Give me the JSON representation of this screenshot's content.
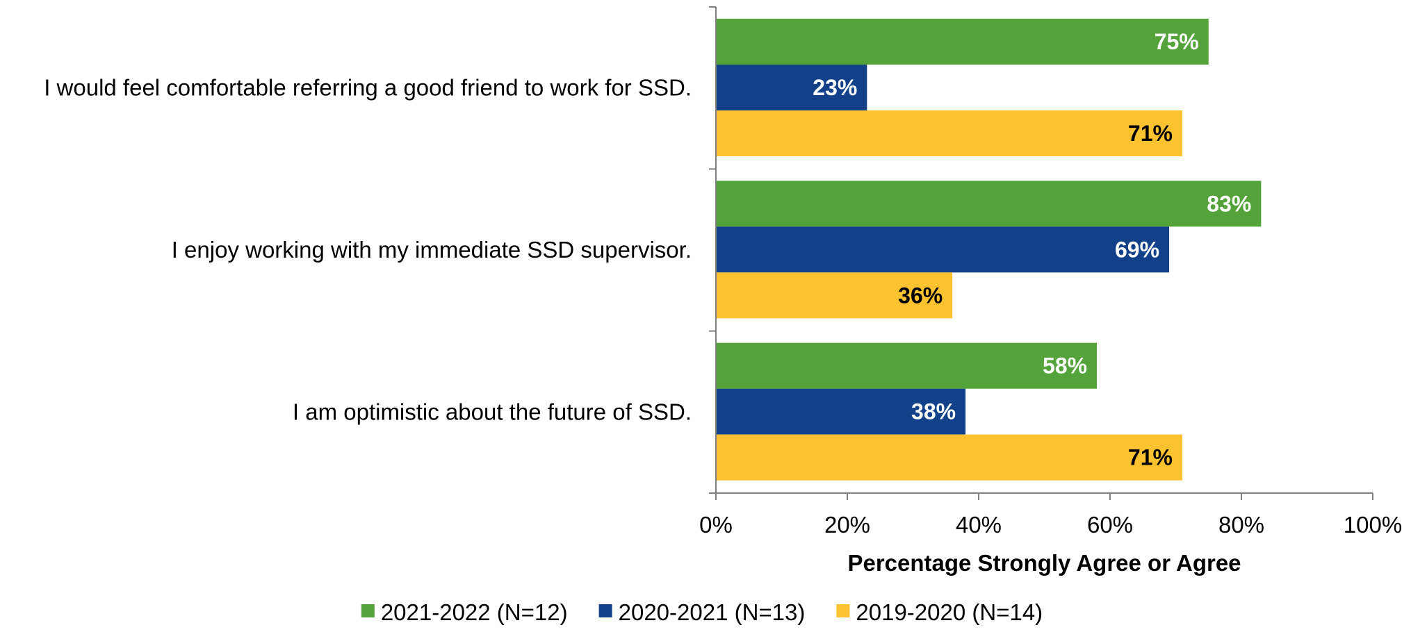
{
  "chart_data": {
    "type": "bar",
    "orientation": "horizontal",
    "categories": [
      "I would feel comfortable referring a good friend to work for SSD.",
      "I enjoy working with my immediate SSD supervisor.",
      "I am optimistic about the future of SSD."
    ],
    "series": [
      {
        "name": "2021-2022 (N=12)",
        "color": "#54A33A",
        "label_color": "#ffffff",
        "values": [
          75,
          83,
          58
        ]
      },
      {
        "name": "2020-2021 (N=13)",
        "color": "#12418A",
        "label_color": "#ffffff",
        "values": [
          23,
          69,
          38
        ]
      },
      {
        "name": "2019-2020 (N=14)",
        "color": "#FCC230",
        "label_color": "#000000",
        "values": [
          71,
          36,
          71
        ]
      }
    ],
    "xlabel": "Percentage Strongly Agree or Agree",
    "xlim": [
      0,
      100
    ],
    "xticks": [
      0,
      20,
      40,
      60,
      80,
      100
    ],
    "tick_suffix": "%",
    "value_suffix": "%",
    "legend_position": "bottom",
    "grid": false
  }
}
